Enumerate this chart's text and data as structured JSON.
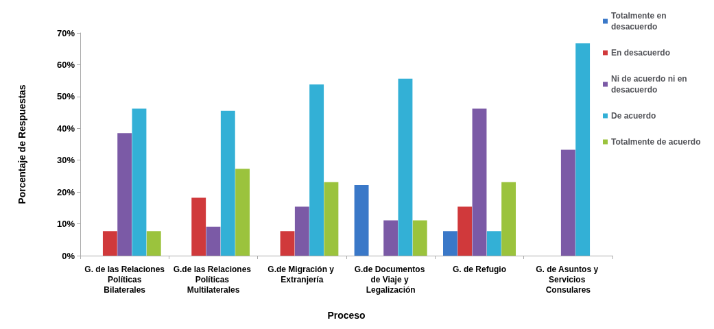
{
  "chart_data": {
    "type": "bar",
    "xlabel": "Proceso",
    "ylabel": "Porcentaje de Respuestas",
    "categories": [
      "G. de las Relaciones Políticas Bilaterales",
      "G.de las Relaciones Políticas Multilaterales",
      "G.de Migración y Extranjería",
      "G.de Documentos de Viaje y Legalización",
      "G. de Refugio",
      "G. de Asuntos y Servicios Consulares"
    ],
    "series": [
      {
        "name": "Totalmente en desacuerdo",
        "color": "#3a78c8",
        "values": [
          0,
          0,
          0,
          22.2,
          7.7,
          0
        ]
      },
      {
        "name": "En desacuerdo",
        "color": "#d0393b",
        "values": [
          7.7,
          18.2,
          7.7,
          0,
          15.4,
          0
        ]
      },
      {
        "name": "Ni de acuerdo ni en desacuerdo",
        "color": "#7b5aa6",
        "values": [
          38.5,
          9.1,
          15.4,
          11.1,
          46.2,
          33.3
        ]
      },
      {
        "name": "De acuerdo",
        "color": "#33b0d6",
        "values": [
          46.2,
          45.5,
          53.8,
          55.6,
          7.7,
          66.7
        ]
      },
      {
        "name": "Totalmente de acuerdo",
        "color": "#9bc33d",
        "values": [
          7.7,
          27.3,
          23.1,
          11.1,
          23.1,
          0
        ]
      }
    ],
    "ylim": [
      0,
      70
    ],
    "yticks": [
      {
        "value": 0,
        "label": "0%"
      },
      {
        "value": 10,
        "label": "10%"
      },
      {
        "value": 20,
        "label": "20%"
      },
      {
        "value": 30,
        "label": "30%"
      },
      {
        "value": 40,
        "label": "40%"
      },
      {
        "value": 50,
        "label": "50%"
      },
      {
        "value": 60,
        "label": "60%"
      },
      {
        "value": 70,
        "label": "70%"
      }
    ],
    "grid": false,
    "legend": "top right"
  }
}
